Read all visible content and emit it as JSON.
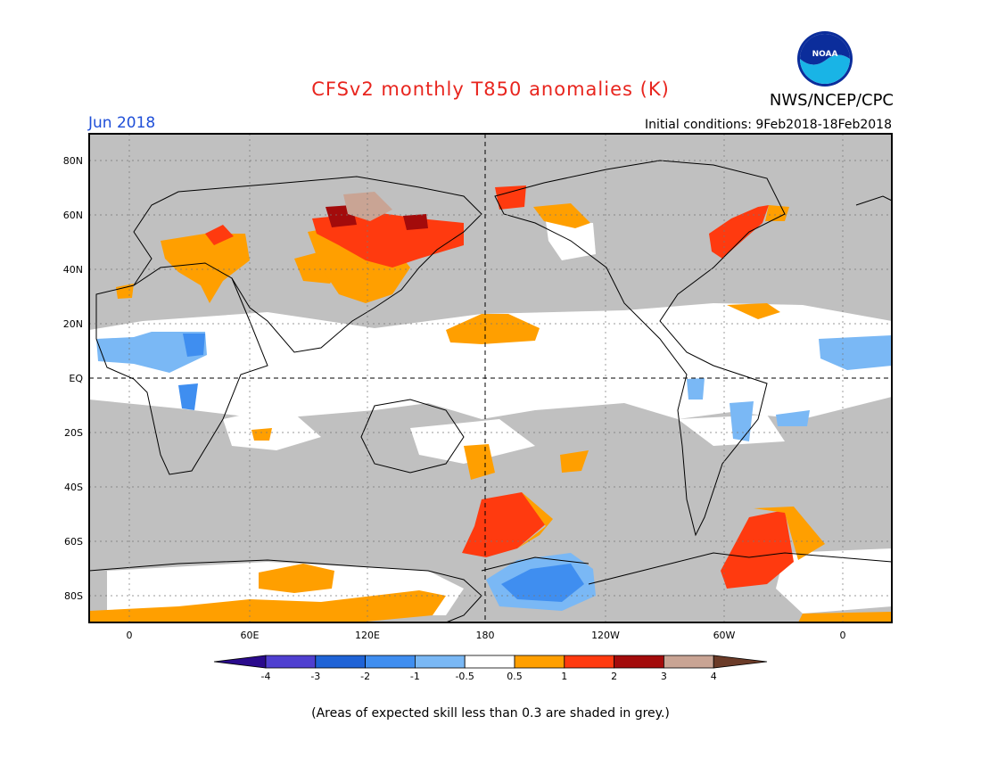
{
  "title": "CFSv2 monthly T850 anomalies (K)",
  "agency": "NWS/NCEP/CPC",
  "logo_text": "NOAA",
  "month": "Jun 2018",
  "initial_conditions": "Initial conditions: 9Feb2018-18Feb2018",
  "footnote": "(Areas of expected skill less than 0.3 are shaded in grey.)",
  "lat_labels": [
    "80N",
    "60N",
    "40N",
    "20N",
    "EQ",
    "20S",
    "40S",
    "60S",
    "80S"
  ],
  "lon_labels": [
    "0",
    "60E",
    "120E",
    "180",
    "120W",
    "60W",
    "0"
  ],
  "colorbar": {
    "ticks": [
      "-4",
      "-3",
      "-2",
      "-1",
      "-0.5",
      "0.5",
      "1",
      "2",
      "3",
      "4"
    ],
    "colors": [
      "#2a0a8c",
      "#4f3fd0",
      "#1f63d6",
      "#3f8ef0",
      "#7ab8f5",
      "#ffffff",
      "#ff9f00",
      "#ff3a0f",
      "#a30b0b",
      "#c9a494",
      "#6b3b28"
    ]
  },
  "colors": {
    "grey_mask": "#c0c0c0",
    "ocean_white": "#ffffff"
  }
}
